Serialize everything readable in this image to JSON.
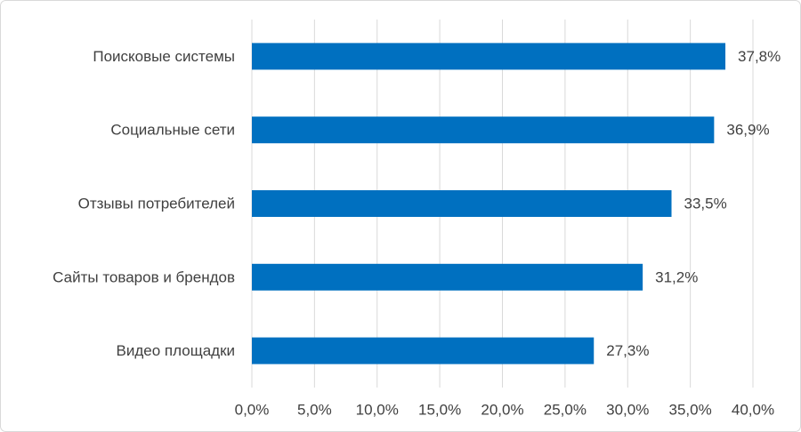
{
  "chart_data": {
    "type": "bar",
    "orientation": "horizontal",
    "categories": [
      "Поисковые системы",
      "Социальные сети",
      "Отзывы потребителей",
      "Сайты товаров и брендов",
      "Видео площадки"
    ],
    "values": [
      37.8,
      36.9,
      33.5,
      31.2,
      27.3
    ],
    "value_labels": [
      "37,8%",
      "36,9%",
      "33,5%",
      "31,2%",
      "27,3%"
    ],
    "color": "#0070c0",
    "xlim": [
      0,
      40
    ],
    "xticks": [
      {
        "value": 0,
        "label": "0,0%"
      },
      {
        "value": 5,
        "label": "5,0%"
      },
      {
        "value": 10,
        "label": "10,0%"
      },
      {
        "value": 15,
        "label": "15,0%"
      },
      {
        "value": 20,
        "label": "20,0%"
      },
      {
        "value": 25,
        "label": "25,0%"
      },
      {
        "value": 30,
        "label": "30,0%"
      },
      {
        "value": 35,
        "label": "35,0%"
      },
      {
        "value": 40,
        "label": "40,0%"
      }
    ],
    "grid": true
  }
}
